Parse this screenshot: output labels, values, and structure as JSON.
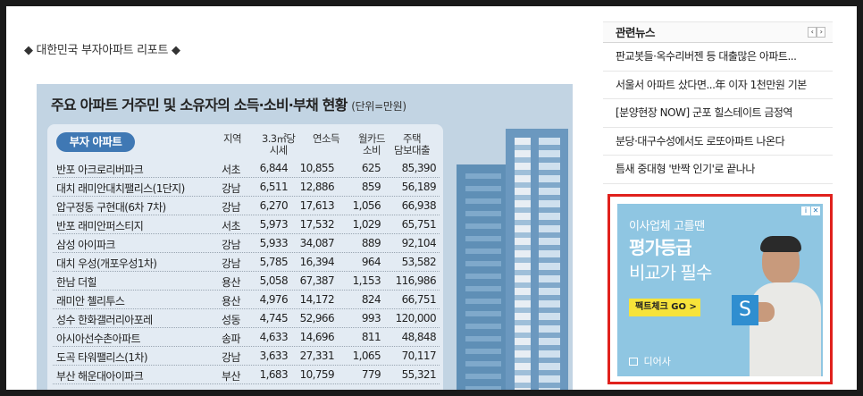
{
  "article": {
    "title": "◆ 대한민국 부자아파트 리포트 ◆"
  },
  "infographic": {
    "heading": "주요 아파트 거주민 및 소유자의 소득·소비·부채 현황",
    "unit": "(단위=만원)",
    "badge": "부자 아파트",
    "columns": {
      "area": "지역",
      "price": [
        "3.3㎡당",
        "시세"
      ],
      "income": "연소득",
      "card": [
        "월카드",
        "소비"
      ],
      "loan": [
        "주택",
        "담보대출"
      ]
    },
    "rows": [
      {
        "name": "반포 아크로리버파크",
        "area": "서초",
        "price": "6,844",
        "income": "10,855",
        "card": "625",
        "loan": "85,390"
      },
      {
        "name": "대치 래미안대치팰리스(1단지)",
        "area": "강남",
        "price": "6,511",
        "income": "12,886",
        "card": "859",
        "loan": "56,189"
      },
      {
        "name": "압구정동 구현대(6차 7차)",
        "area": "강남",
        "price": "6,270",
        "income": "17,613",
        "card": "1,056",
        "loan": "66,938"
      },
      {
        "name": "반포 래미안퍼스티지",
        "area": "서초",
        "price": "5,973",
        "income": "17,532",
        "card": "1,029",
        "loan": "65,751"
      },
      {
        "name": "삼성 아이파크",
        "area": "강남",
        "price": "5,933",
        "income": "34,087",
        "card": "889",
        "loan": "92,104"
      },
      {
        "name": "대치 우성(개포우성1차)",
        "area": "강남",
        "price": "5,785",
        "income": "16,394",
        "card": "964",
        "loan": "53,582"
      },
      {
        "name": "한남 더힐",
        "area": "용산",
        "price": "5,058",
        "income": "67,387",
        "card": "1,153",
        "loan": "116,986"
      },
      {
        "name": "래미안 첼리투스",
        "area": "용산",
        "price": "4,976",
        "income": "14,172",
        "card": "824",
        "loan": "66,751"
      },
      {
        "name": "성수 한화갤러리아포레",
        "area": "성동",
        "price": "4,745",
        "income": "52,966",
        "card": "993",
        "loan": "120,000"
      },
      {
        "name": "아시아선수촌아파트",
        "area": "송파",
        "price": "4,633",
        "income": "14,696",
        "card": "811",
        "loan": "48,848"
      },
      {
        "name": "도곡 타워팰리스(1차)",
        "area": "강남",
        "price": "3,633",
        "income": "27,331",
        "card": "1,065",
        "loan": "70,117"
      },
      {
        "name": "부산 해운대아이파크",
        "area": "부산",
        "price": "1,683",
        "income": "10,759",
        "card": "779",
        "loan": "55,321"
      }
    ]
  },
  "news": {
    "heading": "관련뉴스",
    "prev": "‹",
    "next": "›",
    "items": [
      "판교봇들·옥수리버젠 등 대출많은 아파트...",
      "서울서 아파트 샀다면...年 이자 1천만원 기본",
      "[분양현장 NOW] 군포 힐스테이트 금정역",
      "분당·대구수성에서도 로또아파트 나온다",
      "틈새 중대형 '반짝 인기'로 끝나나"
    ]
  },
  "ad": {
    "sub": "이사업체 고를땐",
    "line1": "평가등급",
    "line2": "비교가 필수",
    "button": "팩트체크 GO >",
    "logo": "디어사",
    "mark": "S",
    "info": "i",
    "close": "✕"
  }
}
